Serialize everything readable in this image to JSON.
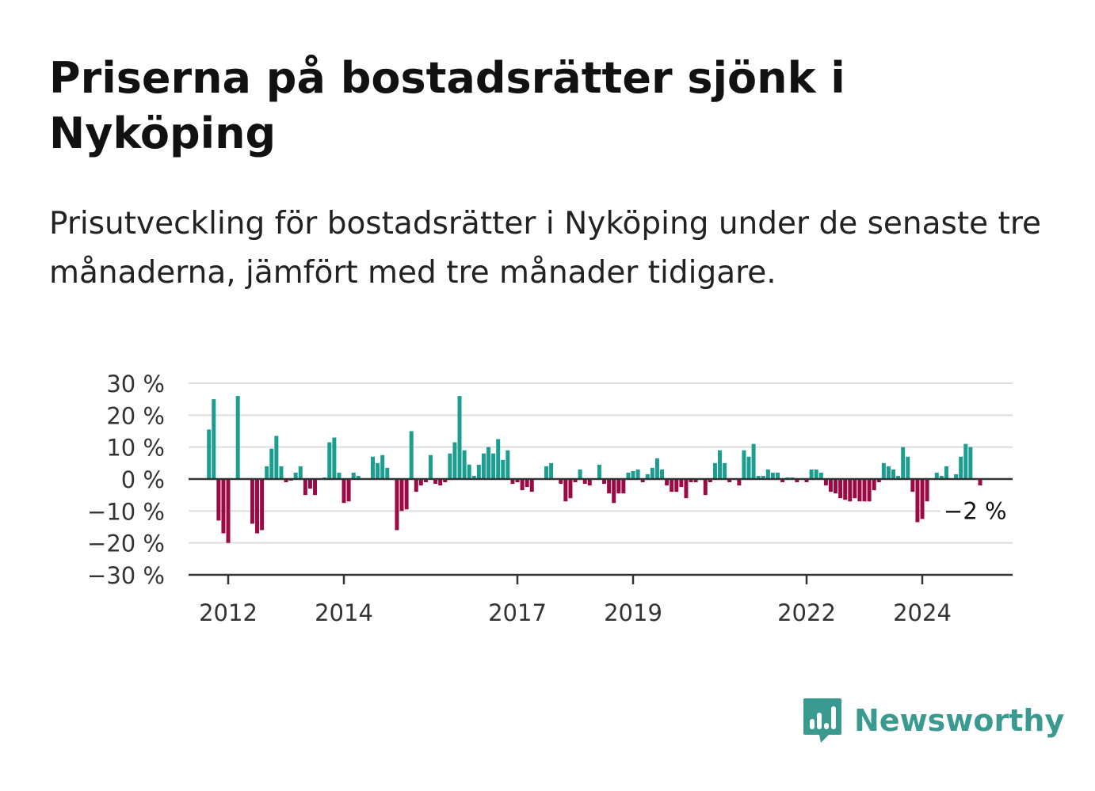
{
  "header": {
    "title": "Priserna på bostadsrätter sjönk i Nyköping",
    "subtitle": "Prisutveckling för bostadsrätter i Nyköping under de senaste tre månaderna, jämfört med tre månader tidigare."
  },
  "brand": {
    "name": "Newsworthy",
    "logo_icon": "bar-chart-speech-bubble-icon"
  },
  "colors": {
    "positive": "#1b9e8f",
    "negative": "#9b0a45",
    "grid": "#dddddd",
    "axis": "#333333",
    "brand": "#3a9a8f"
  },
  "chart_data": {
    "type": "bar",
    "ylim": [
      -30,
      30
    ],
    "y_ticks": [
      30,
      20,
      10,
      0,
      -10,
      -20,
      -30
    ],
    "y_tick_labels": [
      "30 %",
      "20 %",
      "10 %",
      "0 %",
      "−10 %",
      "−20 %",
      "−30 %"
    ],
    "x_ticks": [
      2012,
      2014,
      2017,
      2019,
      2022,
      2024
    ],
    "x_tick_labels": [
      "2012",
      "2014",
      "2017",
      "2019",
      "2022",
      "2024"
    ],
    "x_start": 2011.667,
    "grid": true,
    "end_label": "−2 %",
    "series": [
      {
        "values": [
          15.5,
          25,
          -13,
          -17,
          -20,
          0,
          26,
          0,
          0,
          -14,
          -17,
          -16,
          4,
          9.5,
          13.5,
          4,
          -1,
          -0.5,
          2,
          4,
          -5,
          -3,
          -5,
          0,
          0.5,
          11.5,
          13,
          2,
          -7.5,
          -7,
          2,
          1,
          0,
          0,
          7,
          5,
          7.5,
          3.5,
          0,
          -16,
          -10,
          -9.5,
          15,
          -4,
          -2,
          -1,
          7.5,
          -1.5,
          -2,
          -1,
          8,
          11.5,
          26,
          9,
          4.5,
          1,
          4.5,
          8,
          10,
          8,
          12.5,
          6,
          9,
          -1.5,
          -1,
          -3.5,
          -2.5,
          -4,
          0,
          0,
          4,
          5,
          0,
          -1.5,
          -7,
          -6,
          -1,
          3,
          -1.5,
          -2,
          0,
          4.5,
          -1.5,
          -4.5,
          -7.5,
          -4.5,
          -4.5,
          2,
          2.5,
          3,
          -1,
          1.5,
          3.5,
          6.5,
          3,
          -2,
          -4,
          -4,
          -2.5,
          -6,
          -1,
          -1,
          0,
          -5,
          -1,
          5,
          9,
          5,
          -1,
          0,
          -2,
          9,
          7,
          11,
          1,
          1,
          3,
          2,
          2,
          -1,
          0.5,
          0.5,
          -1,
          0,
          -1,
          3,
          3,
          2,
          -2,
          -4,
          -4.5,
          -6,
          -6.5,
          -7,
          -6,
          -7,
          -7,
          -7,
          -3.5,
          -1,
          5,
          4,
          3,
          1,
          10,
          7,
          -4,
          -13.5,
          -12.5,
          -7,
          0,
          2,
          1,
          4,
          0,
          1.5,
          7,
          11,
          10,
          0,
          -2
        ]
      }
    ]
  }
}
